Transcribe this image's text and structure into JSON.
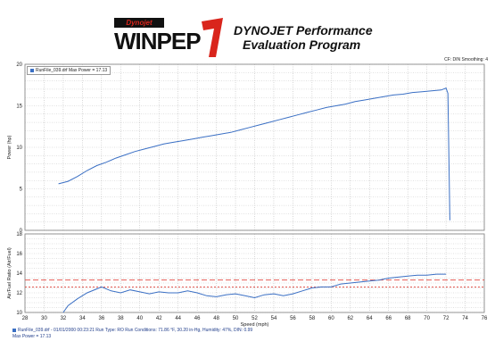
{
  "header": {
    "logo_top": "Dynojet",
    "logo_main": "WINPEP",
    "logo_seven": "7",
    "title_line1": "DYNOJET Performance",
    "title_line2": "Evaluation Program",
    "cf_smoothing": "CF: DIN  Smoothing: 4"
  },
  "legend": {
    "label": "RunFile_039.drf Max Power = 17.13"
  },
  "footer": {
    "run_info": "RunFile_039.drf - 01/01/2000 00:23:21  Run Type: RO  Run Conditions: 71.86 °F, 30.20 in-Hg,  Humidity:  47%, DIN: 0.99",
    "max_power": "Max Power = 17.13"
  },
  "colors": {
    "series": "#3a6fc4",
    "target_line": "#e0443c",
    "grid": "#9a9a9a",
    "logo_red": "#d9251c"
  },
  "chart_data": [
    {
      "type": "line",
      "ylabel": "Power (hp)",
      "xlim": [
        28,
        76
      ],
      "ylim": [
        0,
        20
      ],
      "yticks": [
        0,
        5,
        10,
        15,
        20
      ],
      "grid": true,
      "series": [
        {
          "name": "RunFile_039.drf",
          "points": [
            [
              31.5,
              5.6
            ],
            [
              32.5,
              5.9
            ],
            [
              33.5,
              6.5
            ],
            [
              34.5,
              7.2
            ],
            [
              35.5,
              7.8
            ],
            [
              36.5,
              8.2
            ],
            [
              37.5,
              8.7
            ],
            [
              38.5,
              9.1
            ],
            [
              39.5,
              9.5
            ],
            [
              40.5,
              9.8
            ],
            [
              41.5,
              10.1
            ],
            [
              42.5,
              10.4
            ],
            [
              43.5,
              10.6
            ],
            [
              44.5,
              10.8
            ],
            [
              45.5,
              11.0
            ],
            [
              46.5,
              11.2
            ],
            [
              47.5,
              11.4
            ],
            [
              48.5,
              11.6
            ],
            [
              49.5,
              11.8
            ],
            [
              50.5,
              12.1
            ],
            [
              51.5,
              12.4
            ],
            [
              52.5,
              12.7
            ],
            [
              53.5,
              13.0
            ],
            [
              54.5,
              13.3
            ],
            [
              55.5,
              13.6
            ],
            [
              56.5,
              13.9
            ],
            [
              57.5,
              14.2
            ],
            [
              58.5,
              14.5
            ],
            [
              59.5,
              14.8
            ],
            [
              60.5,
              15.0
            ],
            [
              61.5,
              15.2
            ],
            [
              62.5,
              15.5
            ],
            [
              63.5,
              15.7
            ],
            [
              64.5,
              15.9
            ],
            [
              65.5,
              16.1
            ],
            [
              66.5,
              16.3
            ],
            [
              67.5,
              16.4
            ],
            [
              68.5,
              16.6
            ],
            [
              69.5,
              16.7
            ],
            [
              70.5,
              16.8
            ],
            [
              71.5,
              16.9
            ],
            [
              72.0,
              17.13
            ],
            [
              72.2,
              16.5
            ],
            [
              72.4,
              1.2
            ]
          ]
        }
      ]
    },
    {
      "type": "line",
      "xlabel": "Speed (mph)",
      "ylabel": "Air/Fuel Ratio (Air/Fuel)",
      "xlim": [
        28,
        76
      ],
      "ylim": [
        10,
        18
      ],
      "xticks": [
        28,
        30,
        32,
        34,
        36,
        38,
        40,
        42,
        44,
        46,
        48,
        50,
        52,
        54,
        56,
        58,
        60,
        62,
        64,
        66,
        68,
        70,
        72,
        74,
        76
      ],
      "yticks": [
        10,
        12,
        14,
        16,
        18
      ],
      "grid": true,
      "reference_lines": [
        13.3,
        12.6
      ],
      "series": [
        {
          "name": "RunFile_039.drf",
          "points": [
            [
              32.0,
              10.0
            ],
            [
              32.5,
              10.7
            ],
            [
              33.5,
              11.4
            ],
            [
              34.5,
              12.0
            ],
            [
              35.5,
              12.4
            ],
            [
              36.0,
              12.6
            ],
            [
              37.0,
              12.2
            ],
            [
              38.0,
              12.0
            ],
            [
              39.0,
              12.3
            ],
            [
              40.0,
              12.1
            ],
            [
              41.0,
              11.9
            ],
            [
              42.0,
              12.1
            ],
            [
              43.0,
              12.0
            ],
            [
              44.0,
              12.0
            ],
            [
              45.0,
              12.2
            ],
            [
              46.0,
              12.0
            ],
            [
              47.0,
              11.7
            ],
            [
              48.0,
              11.6
            ],
            [
              49.0,
              11.8
            ],
            [
              50.0,
              11.9
            ],
            [
              51.0,
              11.7
            ],
            [
              52.0,
              11.5
            ],
            [
              53.0,
              11.8
            ],
            [
              54.0,
              11.9
            ],
            [
              55.0,
              11.7
            ],
            [
              56.0,
              11.9
            ],
            [
              57.0,
              12.2
            ],
            [
              58.0,
              12.5
            ],
            [
              59.0,
              12.6
            ],
            [
              60.0,
              12.6
            ],
            [
              61.0,
              12.9
            ],
            [
              62.0,
              13.0
            ],
            [
              63.0,
              13.1
            ],
            [
              64.0,
              13.2
            ],
            [
              65.0,
              13.3
            ],
            [
              66.0,
              13.5
            ],
            [
              67.0,
              13.6
            ],
            [
              68.0,
              13.7
            ],
            [
              69.0,
              13.8
            ],
            [
              70.0,
              13.8
            ],
            [
              71.0,
              13.9
            ],
            [
              72.0,
              13.9
            ]
          ]
        }
      ]
    }
  ]
}
